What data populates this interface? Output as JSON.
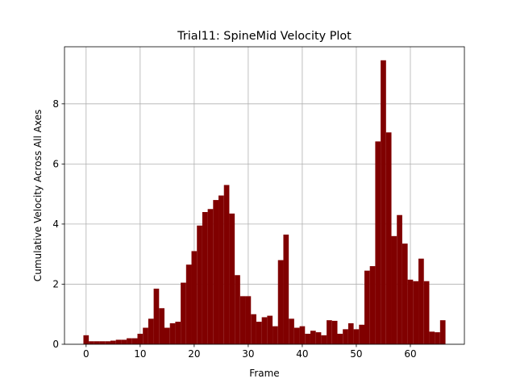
{
  "chart_data": {
    "type": "bar",
    "title": "Trial11: SpineMid Velocity Plot",
    "xlabel": "Frame",
    "ylabel": "Cumulative Velocity Across All Axes",
    "xlim": [
      -4,
      70
    ],
    "ylim": [
      0,
      9.9
    ],
    "xticks": [
      0,
      10,
      20,
      30,
      40,
      50,
      60
    ],
    "yticks": [
      0,
      2,
      4,
      6,
      8
    ],
    "grid": true,
    "bar_color": "#800000",
    "x": [
      0,
      1,
      2,
      3,
      4,
      5,
      6,
      7,
      8,
      9,
      10,
      11,
      12,
      13,
      14,
      15,
      16,
      17,
      18,
      19,
      20,
      21,
      22,
      23,
      24,
      25,
      26,
      27,
      28,
      29,
      30,
      31,
      32,
      33,
      34,
      35,
      36,
      37,
      38,
      39,
      40,
      41,
      42,
      43,
      44,
      45,
      46,
      47,
      48,
      49,
      50,
      51,
      52,
      53,
      54,
      55,
      56,
      57,
      58,
      59,
      60,
      61,
      62,
      63,
      64,
      65,
      66
    ],
    "values": [
      0.3,
      0.1,
      0.1,
      0.1,
      0.1,
      0.12,
      0.15,
      0.15,
      0.2,
      0.2,
      0.35,
      0.55,
      0.85,
      1.85,
      1.2,
      0.55,
      0.7,
      0.75,
      2.05,
      2.65,
      3.1,
      3.95,
      4.4,
      4.5,
      4.8,
      4.95,
      5.3,
      4.35,
      2.3,
      1.6,
      1.6,
      1.0,
      0.75,
      0.9,
      0.95,
      0.6,
      2.8,
      3.65,
      0.85,
      0.55,
      0.6,
      0.35,
      0.45,
      0.4,
      0.3,
      0.8,
      0.78,
      0.35,
      0.5,
      0.7,
      0.5,
      0.65,
      2.45,
      2.6,
      6.75,
      9.45,
      7.05,
      3.6,
      4.3,
      3.35,
      2.15,
      2.1,
      2.85,
      2.1,
      0.42,
      0.4,
      0.8
    ]
  }
}
